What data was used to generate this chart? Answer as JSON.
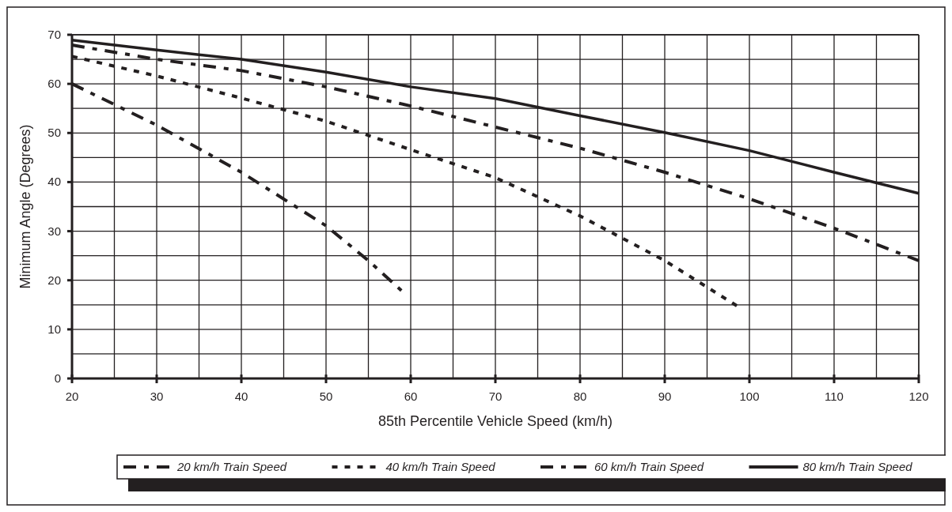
{
  "chart_data": {
    "type": "line",
    "xlabel": "85th Percentile Vehicle Speed (km/h)",
    "ylabel": "Minimum Angle (Degrees)",
    "xlim": [
      20,
      120
    ],
    "xticks": [
      20,
      {
        "value": 25,
        "label": null
      },
      30,
      {
        "value": 35,
        "label": null
      },
      40,
      {
        "value": 45,
        "label": null
      },
      50,
      {
        "value": 55,
        "label": null
      },
      60,
      {
        "value": 65,
        "label": null
      },
      70,
      {
        "value": 75,
        "label": null
      },
      80,
      {
        "value": 85,
        "label": null
      },
      90,
      {
        "value": 95,
        "label": null
      },
      100,
      {
        "value": 105,
        "label": null
      },
      110,
      {
        "value": 115,
        "label": null
      },
      120
    ],
    "ylim": [
      0,
      70
    ],
    "yticks": [
      0,
      {
        "value": 5,
        "label": null
      },
      10,
      {
        "value": 15,
        "label": null
      },
      20,
      {
        "value": 25,
        "label": null
      },
      30,
      {
        "value": 35,
        "label": null
      },
      40,
      {
        "value": 45,
        "label": null
      },
      50,
      {
        "value": 55,
        "label": null
      },
      60,
      {
        "value": 65,
        "label": null
      },
      70
    ],
    "grid": true,
    "legend": "bottom",
    "marker": "none",
    "series": [
      {
        "name": "20 km/h Train Speed",
        "color": "#231f20",
        "line_style": "dashed",
        "x": [
          20,
          30,
          40,
          50,
          55,
          58.9
        ],
        "values": [
          60,
          51.6,
          42,
          31.1,
          24,
          17.9
        ]
      },
      {
        "name": "40 km/h Train Speed",
        "color": "#231f20",
        "line_style": "dotted",
        "x": [
          20,
          30,
          40,
          50,
          60,
          70,
          80,
          90,
          98.7
        ],
        "values": [
          65.6,
          61.6,
          57.1,
          52.4,
          46.6,
          40.9,
          33.1,
          24,
          14.6
        ]
      },
      {
        "name": "60 km/h Train Speed",
        "color": "#231f20",
        "line_style": "dashed",
        "x": [
          20,
          30,
          40,
          50,
          60,
          70,
          80,
          90,
          100,
          110,
          120
        ],
        "values": [
          67.9,
          65,
          62.7,
          59.4,
          55.5,
          51.2,
          46.9,
          42,
          36.6,
          30.6,
          24
        ]
      },
      {
        "name": "80 km/h Train Speed",
        "color": "#231f20",
        "line_style": "solid",
        "x": [
          20,
          30,
          40,
          50,
          60,
          70,
          80,
          90,
          100,
          110,
          120
        ],
        "values": [
          68.9,
          66.9,
          65,
          62.4,
          59.4,
          57,
          53.5,
          50.1,
          46.4,
          42,
          37.7
        ]
      }
    ]
  }
}
